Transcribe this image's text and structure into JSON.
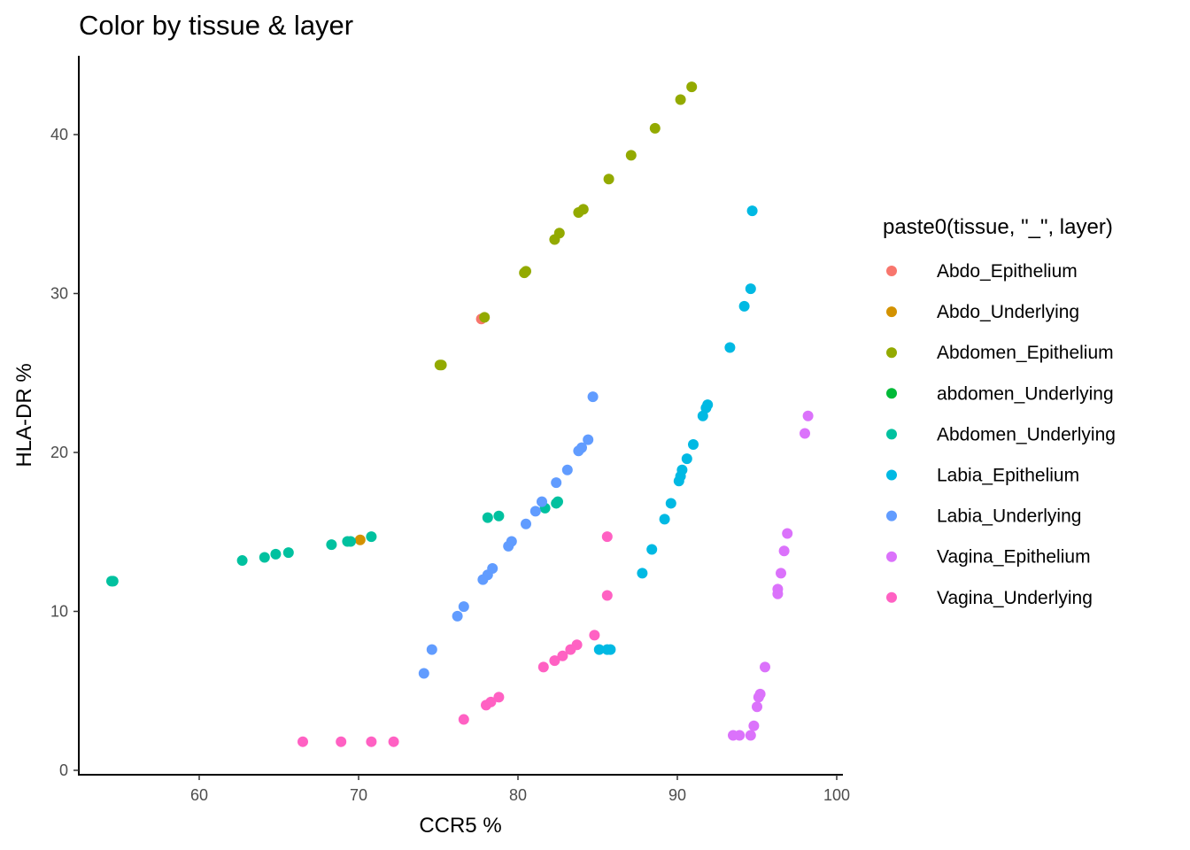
{
  "chart_data": {
    "type": "scatter",
    "title": "Color by tissue & layer",
    "xlabel": "CCR5 %",
    "ylabel": "HLA-DR %",
    "xlim": [
      52.5,
      100.3
    ],
    "ylim": [
      -0.5,
      45
    ],
    "xticks": [
      60,
      70,
      80,
      90,
      100
    ],
    "yticks": [
      0,
      10,
      20,
      30,
      40
    ],
    "grid": false,
    "legend_title": "paste0(tissue, \"_\", layer)",
    "legend_position": "right",
    "series": [
      {
        "name": "Abdo_Epithelium",
        "color": "#F8766D",
        "points": [
          [
            77.7,
            28.4
          ]
        ]
      },
      {
        "name": "Abdo_Underlying",
        "color": "#D39200",
        "points": [
          [
            70.1,
            14.5
          ]
        ]
      },
      {
        "name": "Abdomen_Epithelium",
        "color": "#93AA00",
        "points": [
          [
            90.9,
            43.0
          ],
          [
            90.2,
            42.2
          ],
          [
            88.6,
            40.4
          ],
          [
            87.1,
            38.7
          ],
          [
            85.7,
            37.2
          ],
          [
            84.1,
            35.3
          ],
          [
            83.8,
            35.1
          ],
          [
            82.6,
            33.8
          ],
          [
            82.3,
            33.4
          ],
          [
            80.5,
            31.4
          ],
          [
            80.4,
            31.3
          ],
          [
            77.9,
            28.5
          ],
          [
            75.2,
            25.5
          ],
          [
            75.1,
            25.5
          ]
        ]
      },
      {
        "name": "abdomen_Underlying",
        "color": "#00BA38",
        "points": []
      },
      {
        "name": "Abdomen_Underlying",
        "color": "#00C19F",
        "points": [
          [
            54.5,
            11.9
          ],
          [
            54.6,
            11.9
          ],
          [
            62.7,
            13.2
          ],
          [
            64.1,
            13.4
          ],
          [
            64.8,
            13.6
          ],
          [
            65.6,
            13.7
          ],
          [
            68.3,
            14.2
          ],
          [
            69.3,
            14.4
          ],
          [
            69.5,
            14.4
          ],
          [
            70.8,
            14.7
          ],
          [
            78.1,
            15.9
          ],
          [
            78.8,
            16.0
          ],
          [
            81.7,
            16.5
          ],
          [
            82.4,
            16.8
          ],
          [
            82.5,
            16.9
          ]
        ]
      },
      {
        "name": "Labia_Epithelium",
        "color": "#00B9E3",
        "points": [
          [
            94.7,
            35.2
          ],
          [
            94.6,
            30.3
          ],
          [
            94.2,
            29.2
          ],
          [
            93.3,
            26.6
          ],
          [
            91.9,
            23.0
          ],
          [
            91.8,
            22.8
          ],
          [
            91.6,
            22.3
          ],
          [
            91.0,
            20.5
          ],
          [
            90.6,
            19.6
          ],
          [
            90.3,
            18.9
          ],
          [
            90.2,
            18.5
          ],
          [
            90.1,
            18.2
          ],
          [
            89.6,
            16.8
          ],
          [
            89.2,
            15.8
          ],
          [
            88.4,
            13.9
          ],
          [
            87.8,
            12.4
          ],
          [
            85.8,
            7.6
          ],
          [
            85.6,
            7.6
          ],
          [
            85.1,
            7.6
          ]
        ]
      },
      {
        "name": "Labia_Underlying",
        "color": "#619CFF",
        "points": [
          [
            84.7,
            23.5
          ],
          [
            84.4,
            20.8
          ],
          [
            84.0,
            20.3
          ],
          [
            83.8,
            20.1
          ],
          [
            83.1,
            18.9
          ],
          [
            82.4,
            18.1
          ],
          [
            81.5,
            16.9
          ],
          [
            81.1,
            16.3
          ],
          [
            80.5,
            15.5
          ],
          [
            79.6,
            14.4
          ],
          [
            79.4,
            14.1
          ],
          [
            78.4,
            12.7
          ],
          [
            78.1,
            12.3
          ],
          [
            77.8,
            12.0
          ],
          [
            76.6,
            10.3
          ],
          [
            76.2,
            9.7
          ],
          [
            74.6,
            7.6
          ],
          [
            74.1,
            6.1
          ]
        ]
      },
      {
        "name": "Vagina_Epithelium",
        "color": "#DB72FB",
        "points": [
          [
            98.2,
            22.3
          ],
          [
            98.0,
            21.2
          ],
          [
            96.9,
            14.9
          ],
          [
            96.7,
            13.8
          ],
          [
            96.5,
            12.4
          ],
          [
            96.3,
            11.4
          ],
          [
            96.3,
            11.1
          ],
          [
            95.5,
            6.5
          ],
          [
            95.2,
            4.8
          ],
          [
            95.1,
            4.6
          ],
          [
            95.0,
            4.0
          ],
          [
            94.8,
            2.8
          ],
          [
            94.6,
            2.2
          ],
          [
            93.9,
            2.2
          ],
          [
            93.5,
            2.2
          ]
        ]
      },
      {
        "name": "Vagina_Underlying",
        "color": "#FF61C3",
        "points": [
          [
            85.6,
            14.7
          ],
          [
            85.6,
            11.0
          ],
          [
            84.8,
            8.5
          ],
          [
            83.7,
            7.9
          ],
          [
            83.3,
            7.6
          ],
          [
            82.8,
            7.2
          ],
          [
            82.3,
            6.9
          ],
          [
            81.6,
            6.5
          ],
          [
            78.8,
            4.6
          ],
          [
            78.3,
            4.3
          ],
          [
            78.0,
            4.1
          ],
          [
            76.6,
            3.2
          ],
          [
            72.2,
            1.8
          ],
          [
            70.8,
            1.8
          ],
          [
            68.9,
            1.8
          ],
          [
            66.5,
            1.8
          ]
        ]
      }
    ]
  }
}
